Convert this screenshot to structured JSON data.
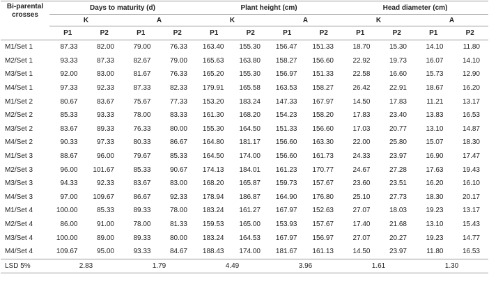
{
  "table": {
    "header": {
      "corner": "Bi-parental crosses",
      "groups": [
        {
          "title": "Days to maturity (d)",
          "subgroups": [
            "K",
            "A"
          ]
        },
        {
          "title": "Plant height (cm)",
          "subgroups": [
            "K",
            "A"
          ]
        },
        {
          "title": "Head diameter (cm)",
          "subgroups": [
            "K",
            "A"
          ]
        }
      ],
      "columns": [
        "P1",
        "P2",
        "P1",
        "P2",
        "P1",
        "P2",
        "P1",
        "P2",
        "P1",
        "P2",
        "P1",
        "P2"
      ]
    },
    "rows": [
      {
        "label": "M1/Set 1",
        "values": [
          "87.33",
          "82.00",
          "79.00",
          "76.33",
          "163.40",
          "155.30",
          "156.47",
          "151.33",
          "18.70",
          "15.30",
          "14.10",
          "11.80"
        ]
      },
      {
        "label": "M2/Set 1",
        "values": [
          "93.33",
          "87.33",
          "82.67",
          "79.00",
          "165.63",
          "163.80",
          "158.27",
          "156.60",
          "22.92",
          "19.73",
          "16.07",
          "14.10"
        ]
      },
      {
        "label": "M3/Set 1",
        "values": [
          "92.00",
          "83.00",
          "81.67",
          "76.33",
          "165.20",
          "155.30",
          "156.97",
          "151.33",
          "22.58",
          "16.60",
          "15.73",
          "12.90"
        ]
      },
      {
        "label": "M4/Set 1",
        "values": [
          "97.33",
          "92.33",
          "87.33",
          "82.33",
          "179.91",
          "165.58",
          "163.53",
          "158.27",
          "26.42",
          "22.91",
          "18.67",
          "16.20"
        ]
      },
      {
        "label": "M1/Set 2",
        "values": [
          "80.67",
          "83.67",
          "75.67",
          "77.33",
          "153.20",
          "183.24",
          "147.33",
          "167.97",
          "14.50",
          "17.83",
          "11.21",
          "13.17"
        ]
      },
      {
        "label": "M2/Set 2",
        "values": [
          "85.33",
          "93.33",
          "78.00",
          "83.33",
          "161.30",
          "168.20",
          "154.23",
          "158.20",
          "17.83",
          "23.40",
          "13.83",
          "16.53"
        ]
      },
      {
        "label": "M3/Set 2",
        "values": [
          "83.67",
          "89.33",
          "76.33",
          "80.00",
          "155.30",
          "164.50",
          "151.33",
          "156.60",
          "17.03",
          "20.77",
          "13.10",
          "14.87"
        ]
      },
      {
        "label": "M4/Set 2",
        "values": [
          "90.33",
          "97.33",
          "80.33",
          "86.67",
          "164.80",
          "181.17",
          "156.60",
          "163.30",
          "22.00",
          "25.80",
          "15.07",
          "18.30"
        ]
      },
      {
        "label": "M1/Set 3",
        "values": [
          "88.67",
          "96.00",
          "79.67",
          "85.33",
          "164.50",
          "174.00",
          "156.60",
          "161.73",
          "24.33",
          "23.97",
          "16.90",
          "17.47"
        ]
      },
      {
        "label": "M2/Set 3",
        "values": [
          "96.00",
          "101.67",
          "85.33",
          "90.67",
          "174.13",
          "184.01",
          "161.23",
          "170.77",
          "24.67",
          "27.28",
          "17.63",
          "19.43"
        ]
      },
      {
        "label": "M3/Set 3",
        "values": [
          "94.33",
          "92.33",
          "83.67",
          "83.00",
          "168.20",
          "165.87",
          "159.73",
          "157.67",
          "23.60",
          "23.51",
          "16.20",
          "16.10"
        ]
      },
      {
        "label": "M4/Set 3",
        "values": [
          "97.00",
          "109.67",
          "86.67",
          "92.33",
          "178.94",
          "186.87",
          "164.90",
          "176.80",
          "25.10",
          "27.73",
          "18.30",
          "20.17"
        ]
      },
      {
        "label": "M1/Set 4",
        "values": [
          "100.00",
          "85.33",
          "89.33",
          "78.00",
          "183.24",
          "161.27",
          "167.97",
          "152.63",
          "27.07",
          "18.03",
          "19.23",
          "13.17"
        ]
      },
      {
        "label": "M2/Set 4",
        "values": [
          "86.00",
          "91.00",
          "78.00",
          "81.33",
          "159.53",
          "165.00",
          "153.93",
          "157.67",
          "17.40",
          "21.68",
          "13.10",
          "15.43"
        ]
      },
      {
        "label": "M3/Set 4",
        "values": [
          "100.00",
          "89.00",
          "89.33",
          "80.00",
          "183.24",
          "164.53",
          "167.97",
          "156.97",
          "27.07",
          "20.27",
          "19.23",
          "14.77"
        ]
      },
      {
        "label": "M4/Set 4",
        "values": [
          "109.67",
          "95.00",
          "93.33",
          "84.67",
          "188.43",
          "174.00",
          "181.67",
          "161.13",
          "14.50",
          "23.97",
          "11.80",
          "16.53"
        ]
      }
    ],
    "lsd": {
      "label": "LSD 5%",
      "values": [
        "2.83",
        "1.79",
        "4.49",
        "3.96",
        "1.61",
        "1.30"
      ]
    }
  }
}
